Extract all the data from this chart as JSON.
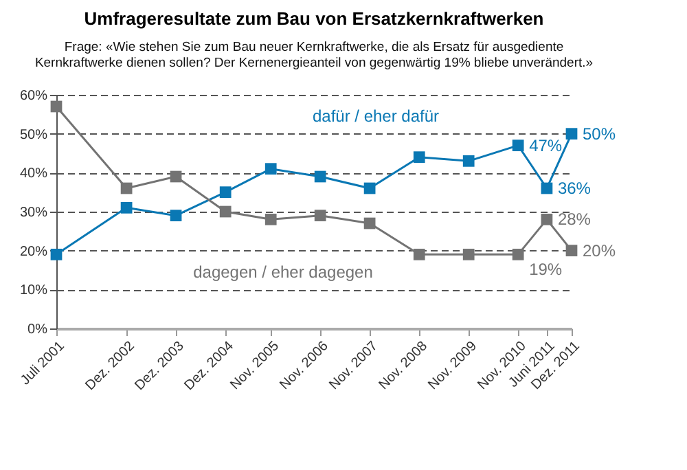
{
  "chart_data": {
    "type": "line",
    "title": "Umfrageresultate zum Bau von Ersatzkernkraftwerken",
    "subtitle": "Frage: «Wie stehen Sie zum Bau neuer Kernkraftwerke, die als Ersatz für ausgediente Kernkraftwerke dienen sollen? Der Kernenergieanteil von gegenwärtig 19% bliebe unverändert.»",
    "x": [
      "2001-07",
      "2002-12",
      "2003-12",
      "2004-12",
      "2005-11",
      "2006-11",
      "2007-11",
      "2008-11",
      "2009-11",
      "2010-11",
      "2011-06",
      "2011-12"
    ],
    "xlim": [
      "2001-07",
      "2011-12"
    ],
    "xticks": [
      {
        "value": "2001-07",
        "label": "Juli 2001"
      },
      {
        "value": "2002-12",
        "label": "Dez. 2002"
      },
      {
        "value": "2003-12",
        "label": "Dez. 2003"
      },
      {
        "value": "2004-12",
        "label": "Dez. 2004"
      },
      {
        "value": "2005-11",
        "label": "Nov. 2005"
      },
      {
        "value": "2006-11",
        "label": "Nov. 2006"
      },
      {
        "value": "2007-11",
        "label": "Nov. 2007"
      },
      {
        "value": "2008-11",
        "label": "Nov. 2008"
      },
      {
        "value": "2009-11",
        "label": "Nov. 2009"
      },
      {
        "value": "2010-11",
        "label": "Nov. 2010"
      },
      {
        "value": "2011-06",
        "label": "Juni 2011"
      },
      {
        "value": "2011-12",
        "label": "Dez. 2011"
      }
    ],
    "ylim": [
      0,
      60
    ],
    "yticks": [
      {
        "value": 0,
        "label": "0%"
      },
      {
        "value": 10,
        "label": "10%"
      },
      {
        "value": 20,
        "label": "20%"
      },
      {
        "value": 30,
        "label": "30%"
      },
      {
        "value": 40,
        "label": "40%"
      },
      {
        "value": 50,
        "label": "50%"
      },
      {
        "value": 60,
        "label": "60%"
      }
    ],
    "series": [
      {
        "name": "dafür / eher dafür",
        "color": "#0a78b4",
        "values": [
          19,
          31,
          29,
          35,
          41,
          39,
          36,
          44,
          43,
          47,
          36,
          50
        ],
        "value_labels": [
          null,
          null,
          null,
          null,
          null,
          null,
          null,
          null,
          null,
          "47%",
          "36%",
          "50%"
        ]
      },
      {
        "name": "dagegen / eher dagegen",
        "color": "#737373",
        "values": [
          57,
          36,
          39,
          30,
          28,
          29,
          27,
          19,
          19,
          19,
          28,
          20
        ],
        "value_labels": [
          null,
          null,
          null,
          null,
          null,
          null,
          null,
          null,
          null,
          "19%",
          "28%",
          "20%"
        ]
      }
    ],
    "grid": "y",
    "legend": false,
    "marker": "square",
    "line_style": "solid"
  }
}
